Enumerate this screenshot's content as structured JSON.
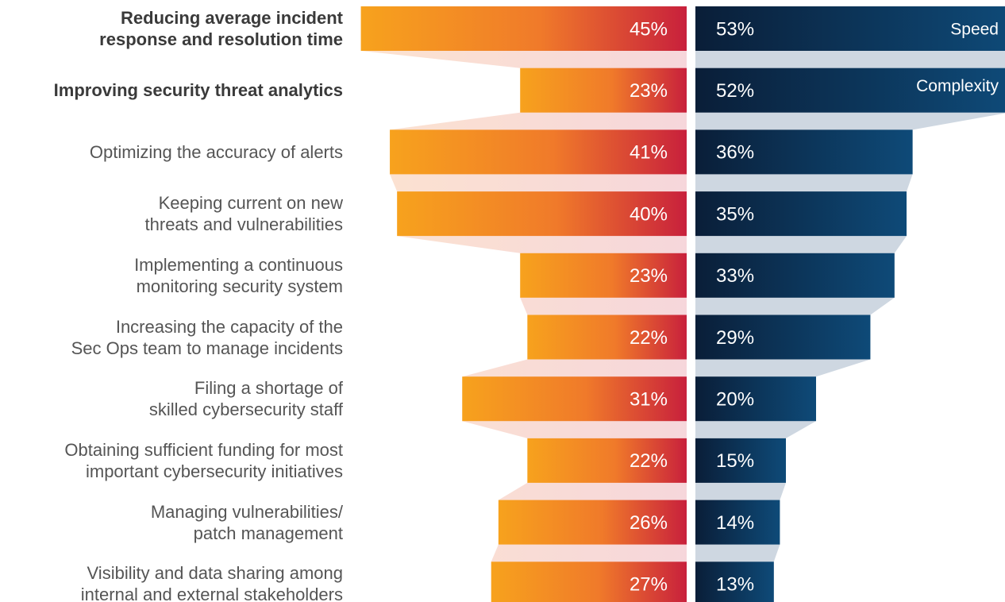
{
  "chart_data": {
    "type": "butterfly",
    "categories": [
      "Reducing average incident\nresponse and resolution time",
      "Improving security threat analytics",
      "Optimizing the accuracy of alerts",
      "Keeping current on new\nthreats and vulnerabilities",
      "Implementing a continuous\nmonitoring security system",
      "Increasing the capacity of the\nSec Ops team to manage incidents",
      "Filing a shortage of\nskilled cybersecurity staff",
      "Obtaining sufficient funding for most\nimportant cybersecurity initiatives",
      "Managing vulnerabilities/\npatch management",
      "Visibility and data sharing among\ninternal and external stakeholders"
    ],
    "series": [
      {
        "name": "Speed",
        "color": "#f7941d",
        "values": [
          45,
          23,
          41,
          40,
          23,
          22,
          31,
          22,
          26,
          27
        ],
        "value_labels": [
          "45%",
          "23%",
          "41%",
          "40%",
          "23%",
          "22%",
          "31%",
          "22%",
          "26%",
          "27%"
        ]
      },
      {
        "name": "Complexity",
        "color": "#0b2a4a",
        "values": [
          53,
          52,
          36,
          35,
          33,
          29,
          20,
          15,
          14,
          13
        ],
        "value_labels": [
          "53%",
          "52%",
          "36%",
          "35%",
          "33%",
          "29%",
          "20%",
          "15%",
          "14%",
          "13%"
        ]
      }
    ]
  }
}
